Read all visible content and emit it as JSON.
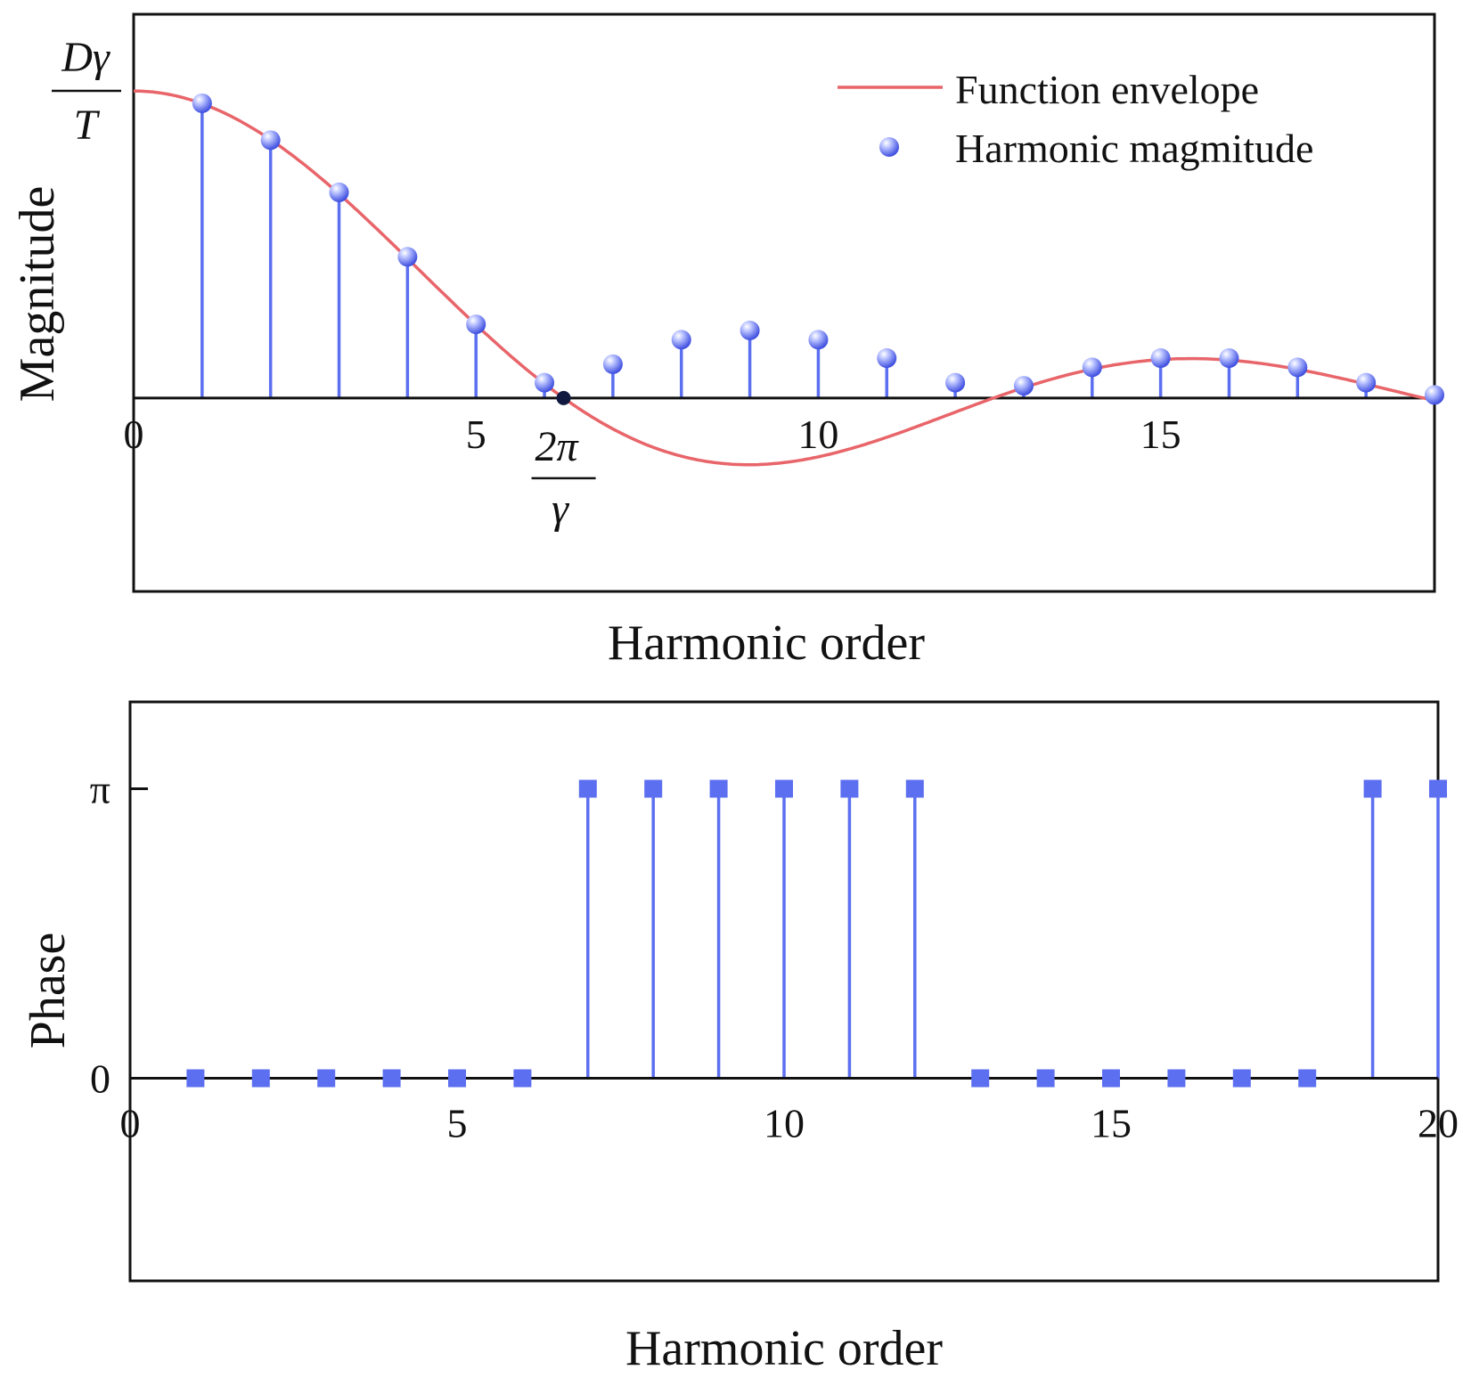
{
  "colors": {
    "envelope": "#e8656a",
    "stem": "#5b6ff0",
    "marker_light": "#b9c2ff",
    "marker_dark": "#3f4fe0",
    "axis": "#111111",
    "zero_crossing_point": "#101a40"
  },
  "chart_data": [
    {
      "type": "stem",
      "title": "",
      "xlabel": "Harmonic order",
      "ylabel": "Magnitude",
      "xlim": [
        0,
        19
      ],
      "ylim": [
        -0.63,
        1.25
      ],
      "x_ticks": [
        0,
        5,
        10,
        15
      ],
      "y_tick_label": {
        "numerator": "Dγ",
        "denominator": "T",
        "value": 1
      },
      "special_x_label": {
        "numerator": "2π",
        "denominator": "γ",
        "value": 6.28
      },
      "grid": false,
      "legend_position": "top-right",
      "legend": [
        {
          "label": "Function envelope",
          "kind": "line"
        },
        {
          "label": "Harmonic magmitude",
          "kind": "marker"
        }
      ],
      "envelope": {
        "name": "Function envelope",
        "function": "sin(pi*x/6.28)/(pi*x/6.28)",
        "x_range": [
          0,
          19
        ]
      },
      "series": [
        {
          "name": "Harmonic magmitude",
          "x": [
            1,
            2,
            3,
            4,
            5,
            6,
            7,
            8,
            9,
            10,
            11,
            12,
            13,
            14,
            15,
            16,
            17,
            18,
            19
          ],
          "values": [
            0.96,
            0.84,
            0.67,
            0.46,
            0.24,
            0.05,
            0.11,
            0.19,
            0.22,
            0.19,
            0.13,
            0.05,
            0.04,
            0.1,
            0.13,
            0.13,
            0.1,
            0.05,
            0.01
          ]
        }
      ]
    },
    {
      "type": "stem",
      "title": "",
      "xlabel": "Harmonic order",
      "ylabel": "Phase",
      "xlim": [
        0,
        20
      ],
      "ylim": [
        -0.7,
        1.3
      ],
      "x_ticks": [
        0,
        5,
        10,
        15,
        20
      ],
      "y_ticks": [
        {
          "value": 0,
          "label": "0"
        },
        {
          "value": 1,
          "label": "π"
        }
      ],
      "grid": false,
      "series": [
        {
          "name": "",
          "x": [
            1,
            2,
            3,
            4,
            5,
            6,
            7,
            8,
            9,
            10,
            11,
            12,
            13,
            14,
            15,
            16,
            17,
            18,
            19,
            20
          ],
          "values": [
            0,
            0,
            0,
            0,
            0,
            0,
            1,
            1,
            1,
            1,
            1,
            1,
            0,
            0,
            0,
            0,
            0,
            0,
            1,
            1
          ]
        }
      ]
    }
  ]
}
